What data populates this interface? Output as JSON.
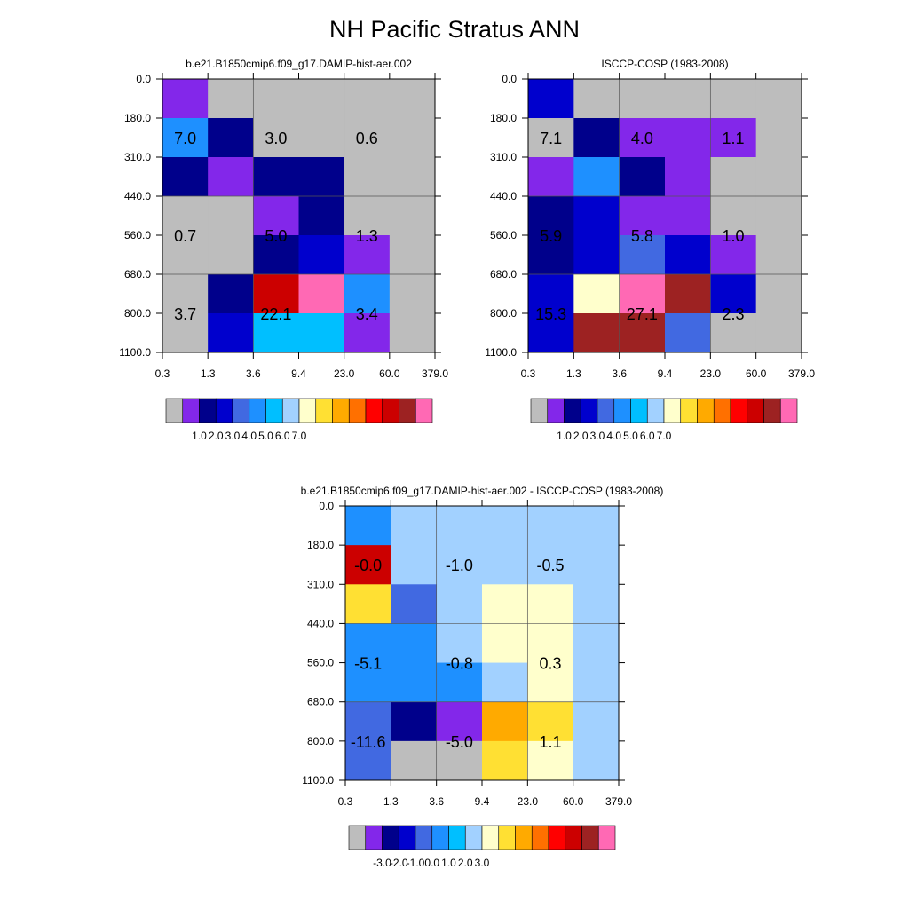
{
  "title": "NH Pacific Stratus ANN",
  "tau_labels": [
    "0.3",
    "1.3",
    "3.6",
    "9.4",
    "23.0",
    "60.0",
    "379.0"
  ],
  "ctp_labels": [
    "0.0",
    "180.0",
    "310.0",
    "440.0",
    "560.0",
    "680.0",
    "800.0",
    "1100.0"
  ],
  "colormaps": {
    "abs": [
      "#bdbdbd",
      "#8327ea",
      "#00008b",
      "#0000cd",
      "#4169e1",
      "#1e90ff",
      "#00bfff",
      "#a2d1ff",
      "#ffffcc",
      "#ffe033",
      "#ffaa00",
      "#ff7000",
      "#ff0000",
      "#cc0000",
      "#9d2222",
      "#ff69b4"
    ],
    "diff": [
      "#bdbdbd",
      "#8327ea",
      "#00008b",
      "#0000cd",
      "#4169e1",
      "#1e90ff",
      "#00bfff",
      "#a2d1ff",
      "#ffffcc",
      "#ffe033",
      "#ffaa00",
      "#ff7000",
      "#ff0000",
      "#cc0000",
      "#9d2222",
      "#ff69b4"
    ]
  },
  "chart_data": [
    {
      "type": "heatmap",
      "title": "b.e21.B1850cmip6.f09_g17.DAMIP-hist-aer.002",
      "cells": [
        [
          "#8327ea",
          "#bdbdbd",
          "#bdbdbd",
          "#bdbdbd",
          "#bdbdbd",
          "#bdbdbd"
        ],
        [
          "#1e90ff",
          "#00008b",
          "#bdbdbd",
          "#bdbdbd",
          "#bdbdbd",
          "#bdbdbd"
        ],
        [
          "#00008b",
          "#8327ea",
          "#00008b",
          "#00008b",
          "#bdbdbd",
          "#bdbdbd"
        ],
        [
          "#bdbdbd",
          "#bdbdbd",
          "#8327ea",
          "#00008b",
          "#bdbdbd",
          "#bdbdbd"
        ],
        [
          "#bdbdbd",
          "#bdbdbd",
          "#00008b",
          "#0000cd",
          "#8327ea",
          "#bdbdbd"
        ],
        [
          "#bdbdbd",
          "#00008b",
          "#cc0000",
          "#ff69b4",
          "#1e90ff",
          "#bdbdbd"
        ],
        [
          "#bdbdbd",
          "#0000cd",
          "#00bfff",
          "#00bfff",
          "#8327ea",
          "#bdbdbd"
        ]
      ],
      "sums": [
        {
          "text": "7.0",
          "col": 0.5,
          "row": 1.5
        },
        {
          "text": "3.0",
          "col": 2.5,
          "row": 1.5
        },
        {
          "text": "0.6",
          "col": 4.5,
          "row": 1.5
        },
        {
          "text": "0.7",
          "col": 0.5,
          "row": 4.0
        },
        {
          "text": "5.0",
          "col": 2.5,
          "row": 4.0
        },
        {
          "text": "1.3",
          "col": 4.5,
          "row": 4.0
        },
        {
          "text": "3.7",
          "col": 0.5,
          "row": 6.0
        },
        {
          "text": "22.1",
          "col": 2.5,
          "row": 6.0
        },
        {
          "text": "3.4",
          "col": 4.5,
          "row": 6.0
        }
      ],
      "legend_ticks": [
        "1.0",
        "2.0",
        "3.0",
        "4.0",
        "5.0",
        "6.0",
        "7.0"
      ],
      "colormap": "abs"
    },
    {
      "type": "heatmap",
      "title": "ISCCP-COSP (1983-2008)",
      "cells": [
        [
          "#0000cd",
          "#bdbdbd",
          "#bdbdbd",
          "#bdbdbd",
          "#bdbdbd",
          "#bdbdbd"
        ],
        [
          "#bdbdbd",
          "#00008b",
          "#8327ea",
          "#8327ea",
          "#8327ea",
          "#bdbdbd"
        ],
        [
          "#8327ea",
          "#1e90ff",
          "#00008b",
          "#8327ea",
          "#bdbdbd",
          "#bdbdbd"
        ],
        [
          "#00008b",
          "#0000cd",
          "#8327ea",
          "#8327ea",
          "#bdbdbd",
          "#bdbdbd"
        ],
        [
          "#00008b",
          "#0000cd",
          "#4169e1",
          "#0000cd",
          "#8327ea",
          "#bdbdbd"
        ],
        [
          "#0000cd",
          "#ffffcc",
          "#ff69b4",
          "#9d2222",
          "#0000cd",
          "#bdbdbd"
        ],
        [
          "#0000cd",
          "#9d2222",
          "#9d2222",
          "#4169e1",
          "#bdbdbd",
          "#bdbdbd"
        ]
      ],
      "sums": [
        {
          "text": "7.1",
          "col": 0.5,
          "row": 1.5
        },
        {
          "text": "4.0",
          "col": 2.5,
          "row": 1.5
        },
        {
          "text": "1.1",
          "col": 4.5,
          "row": 1.5
        },
        {
          "text": "5.9",
          "col": 0.5,
          "row": 4.0
        },
        {
          "text": "5.8",
          "col": 2.5,
          "row": 4.0
        },
        {
          "text": "1.0",
          "col": 4.5,
          "row": 4.0
        },
        {
          "text": "15.3",
          "col": 0.5,
          "row": 6.0
        },
        {
          "text": "27.1",
          "col": 2.5,
          "row": 6.0
        },
        {
          "text": "2.3",
          "col": 4.5,
          "row": 6.0
        }
      ],
      "legend_ticks": [
        "1.0",
        "2.0",
        "3.0",
        "4.0",
        "5.0",
        "6.0",
        "7.0"
      ],
      "colormap": "abs"
    },
    {
      "type": "heatmap",
      "title": "b.e21.B1850cmip6.f09_g17.DAMIP-hist-aer.002 - ISCCP-COSP (1983-2008)",
      "cells": [
        [
          "#1e90ff",
          "#a2d1ff",
          "#a2d1ff",
          "#a2d1ff",
          "#a2d1ff",
          "#a2d1ff"
        ],
        [
          "#cc0000",
          "#a2d1ff",
          "#a2d1ff",
          "#a2d1ff",
          "#a2d1ff",
          "#a2d1ff"
        ],
        [
          "#ffe033",
          "#4169e1",
          "#a2d1ff",
          "#ffffcc",
          "#ffffcc",
          "#a2d1ff"
        ],
        [
          "#1e90ff",
          "#1e90ff",
          "#a2d1ff",
          "#ffffcc",
          "#ffffcc",
          "#a2d1ff"
        ],
        [
          "#1e90ff",
          "#1e90ff",
          "#1e90ff",
          "#a2d1ff",
          "#ffffcc",
          "#a2d1ff"
        ],
        [
          "#4169e1",
          "#00008b",
          "#8327ea",
          "#ffaa00",
          "#ffe033",
          "#a2d1ff"
        ],
        [
          "#4169e1",
          "#bdbdbd",
          "#bdbdbd",
          "#ffe033",
          "#ffffcc",
          "#a2d1ff"
        ]
      ],
      "sums": [
        {
          "text": "-0.0",
          "col": 0.5,
          "row": 1.5
        },
        {
          "text": "-1.0",
          "col": 2.5,
          "row": 1.5
        },
        {
          "text": "-0.5",
          "col": 4.5,
          "row": 1.5
        },
        {
          "text": "-5.1",
          "col": 0.5,
          "row": 4.0
        },
        {
          "text": "-0.8",
          "col": 2.5,
          "row": 4.0
        },
        {
          "text": "0.3",
          "col": 4.5,
          "row": 4.0
        },
        {
          "text": "-11.6",
          "col": 0.5,
          "row": 6.0
        },
        {
          "text": "-5.0",
          "col": 2.5,
          "row": 6.0
        },
        {
          "text": "1.1",
          "col": 4.5,
          "row": 6.0
        }
      ],
      "legend_ticks": [
        "-3.0",
        "-2.0",
        "-1.0",
        "0.0",
        "1.0",
        "2.0",
        "3.0"
      ],
      "colormap": "diff"
    }
  ]
}
